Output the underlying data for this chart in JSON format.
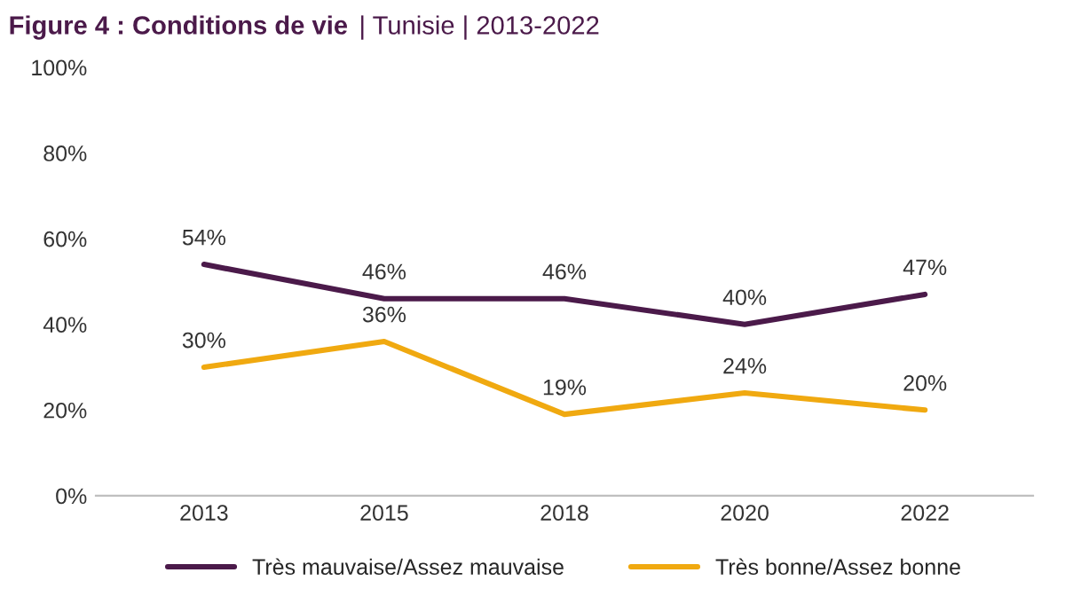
{
  "chart_data": {
    "type": "line",
    "title": "Figure 4 : Conditions de vie",
    "subtitle": "| Tunisie | 2013-2022",
    "categories": [
      "2013",
      "2015",
      "2018",
      "2020",
      "2022"
    ],
    "series": [
      {
        "name": "Très mauvaise/Assez mauvaise",
        "color": "#4b1a4a",
        "values": [
          54,
          46,
          46,
          40,
          47
        ],
        "value_labels": [
          "54%",
          "46%",
          "46%",
          "40%",
          "47%"
        ]
      },
      {
        "name": "Très bonne/Assez bonne",
        "color": "#f0a910",
        "values": [
          30,
          36,
          19,
          24,
          20
        ],
        "value_labels": [
          "30%",
          "36%",
          "19%",
          "24%",
          "20%"
        ]
      }
    ],
    "ylim": [
      0,
      100
    ],
    "yticks": [
      {
        "value": 0,
        "label": "0%"
      },
      {
        "value": 20,
        "label": "20%"
      },
      {
        "value": 40,
        "label": "40%"
      },
      {
        "value": 60,
        "label": "60%"
      },
      {
        "value": 80,
        "label": "80%"
      },
      {
        "value": 100,
        "label": "100%"
      }
    ],
    "legend": "bottom",
    "grid": false,
    "marker": "none",
    "line_style": "solid"
  }
}
